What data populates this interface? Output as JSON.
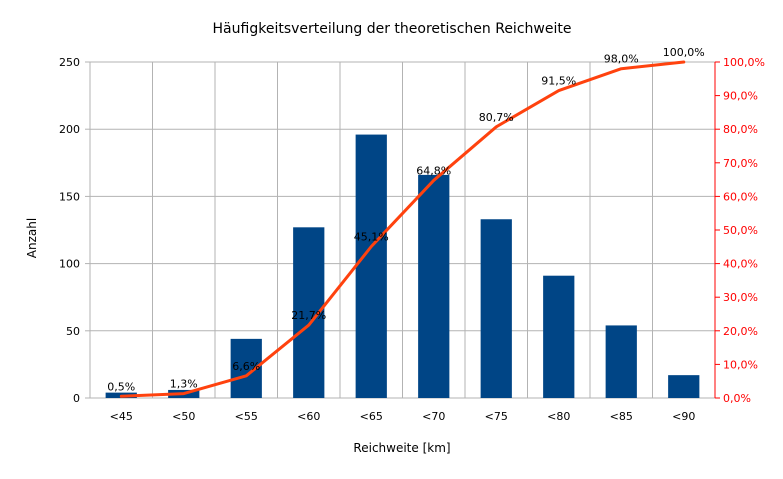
{
  "chart_data": {
    "type": "bar",
    "title": "Häufigkeitsverteilung der theoretischen Reichweite",
    "xlabel": "Reichweite [km]",
    "ylabel": "Anzahl",
    "categories": [
      "<45",
      "<50",
      "<55",
      "<60",
      "<65",
      "<70",
      "<75",
      "<80",
      "<85",
      "<90"
    ],
    "series": [
      {
        "type": "bar",
        "axis": "left",
        "color": "#004586",
        "values": [
          4,
          6,
          44,
          127,
          196,
          166,
          133,
          91,
          54,
          17
        ]
      },
      {
        "type": "line",
        "axis": "right",
        "color": "#ff420e",
        "values": [
          0.5,
          1.3,
          6.6,
          21.7,
          45.1,
          64.8,
          80.7,
          91.5,
          98.0,
          100.0
        ],
        "labels": [
          "0,5%",
          "1,3%",
          "6,6%",
          "21,7%",
          "45,1%",
          "64,8%",
          "80,7%",
          "91,5%",
          "98,0%",
          "100,0%"
        ]
      }
    ],
    "ylim": [
      0,
      250
    ],
    "yticks": [
      "0",
      "50",
      "100",
      "150",
      "200",
      "250"
    ],
    "y2lim": [
      0,
      100
    ],
    "y2ticks": [
      "0,0%",
      "10,0%",
      "20,0%",
      "30,0%",
      "40,0%",
      "50,0%",
      "60,0%",
      "70,0%",
      "80,0%",
      "90,0%",
      "100,0%"
    ],
    "y2_color": "#ff0000",
    "grid": true,
    "legend": "none"
  }
}
